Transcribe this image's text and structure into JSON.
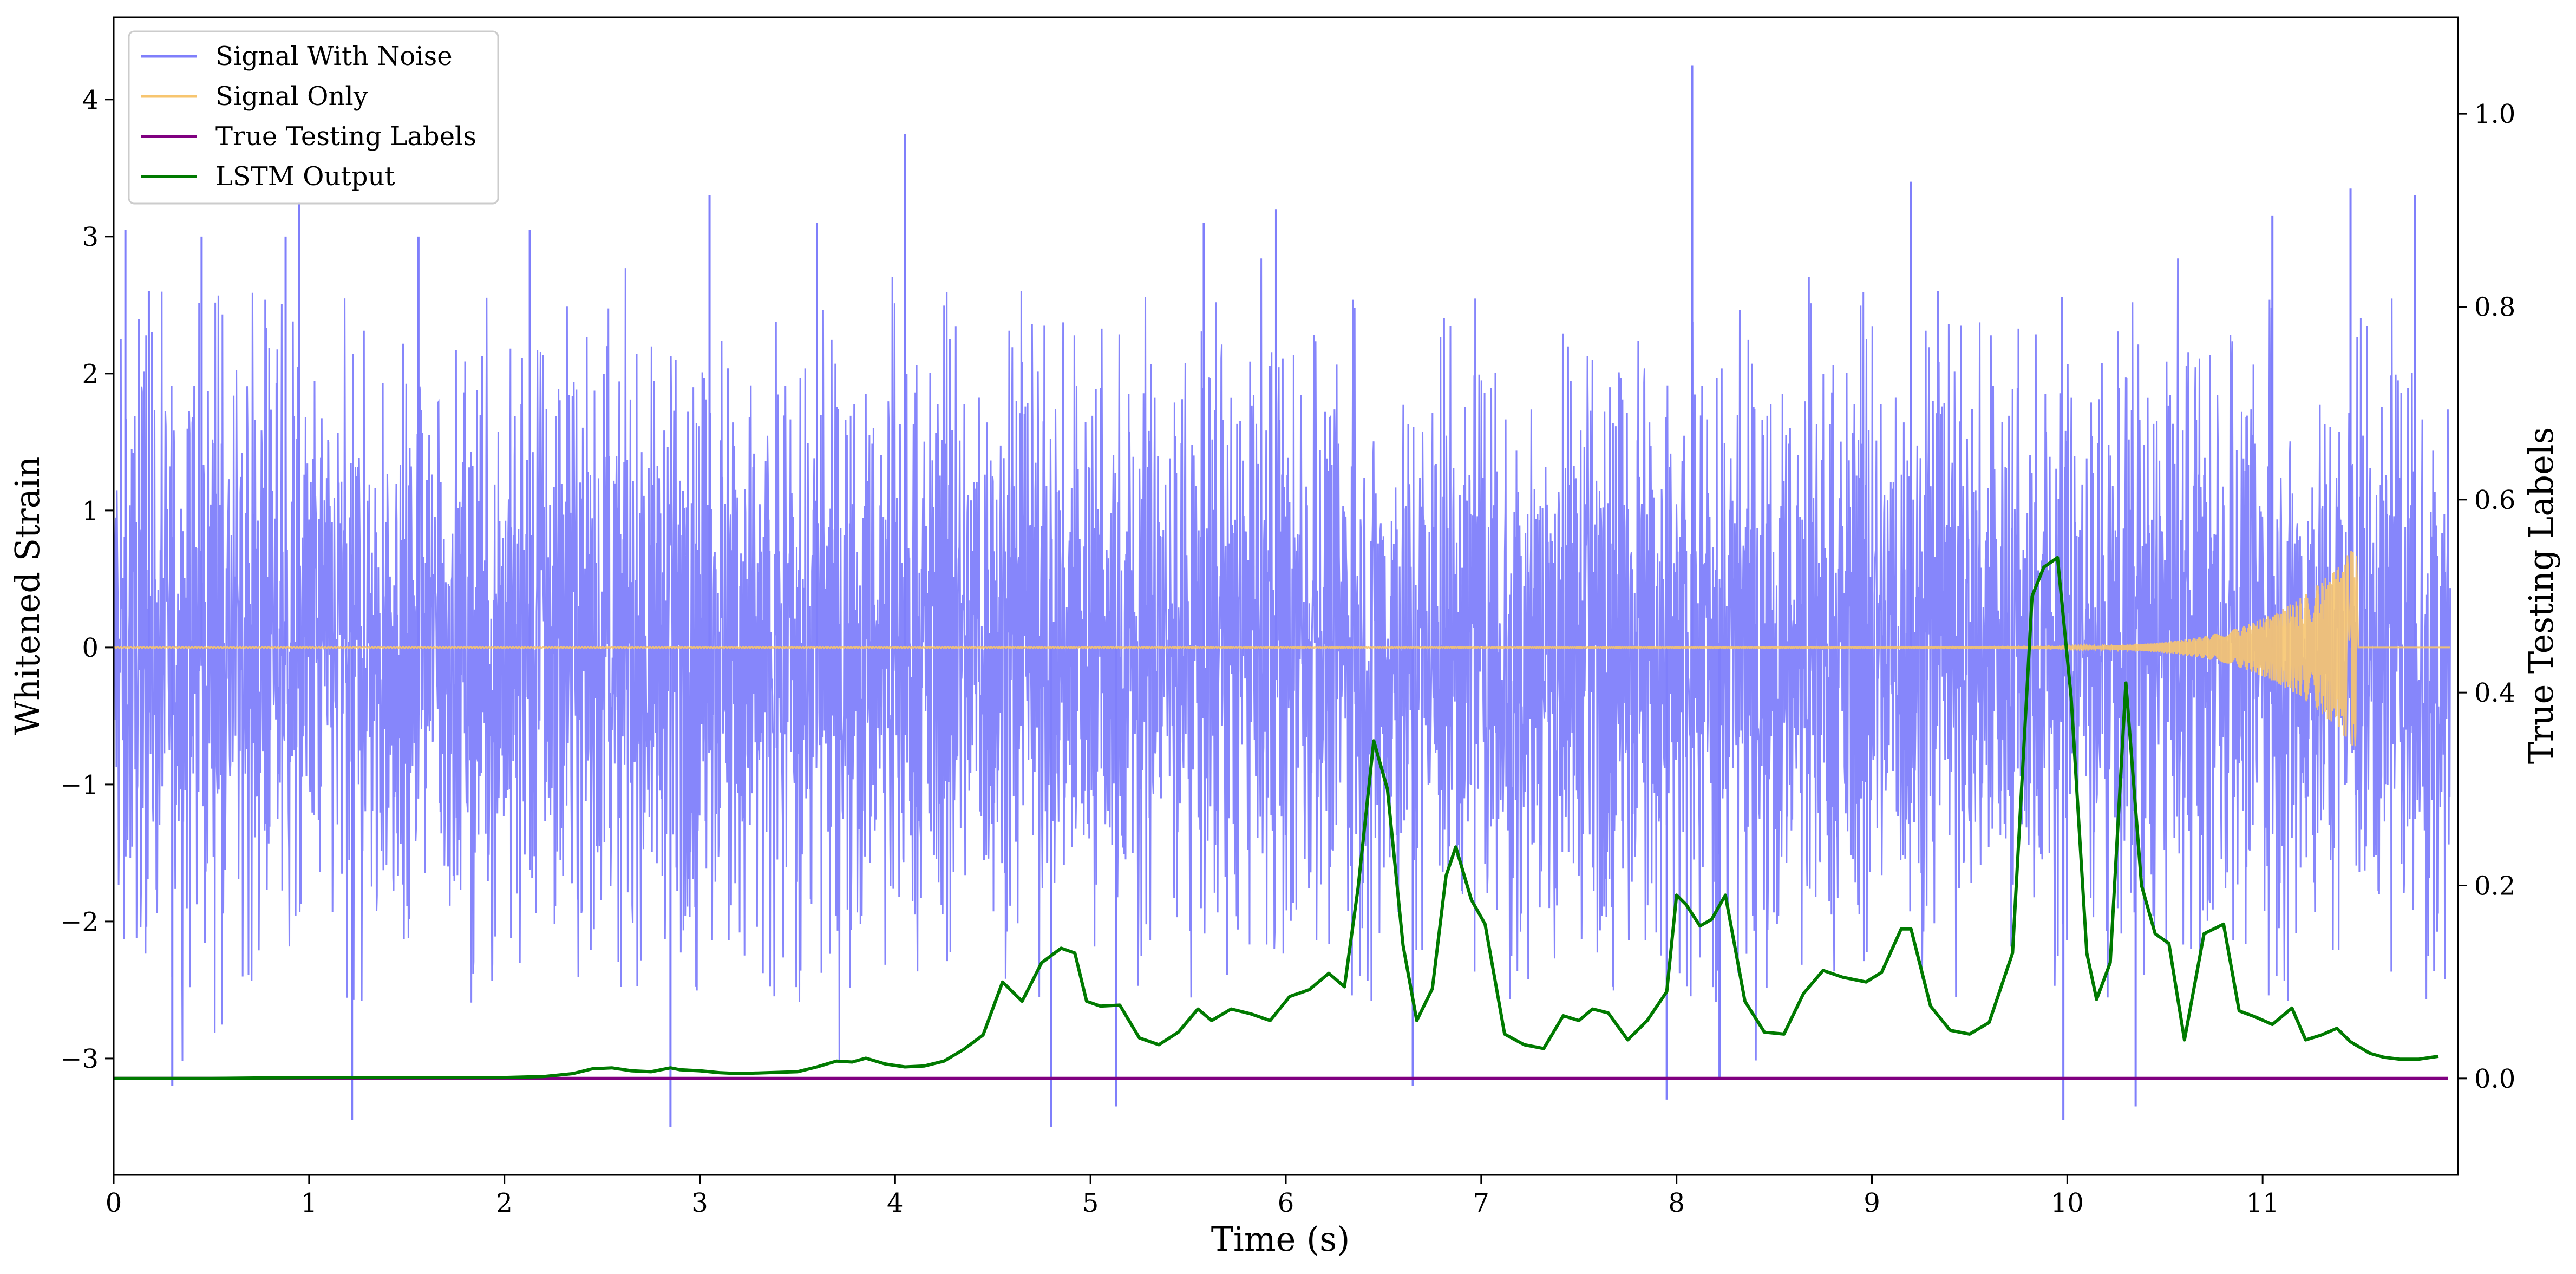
{
  "chart_data": {
    "type": "line",
    "xlabel": "Time (s)",
    "ylabel_left": "Whitened Strain",
    "ylabel_right": "True Testing Labels",
    "xlim": [
      0,
      12
    ],
    "ylim_left": [
      -3.85,
      4.6
    ],
    "ylim_right": [
      -0.1,
      1.1
    ],
    "x_ticks": [
      "0",
      "1",
      "2",
      "3",
      "4",
      "5",
      "6",
      "7",
      "8",
      "9",
      "10",
      "11"
    ],
    "x_tick_values": [
      0,
      1,
      2,
      3,
      4,
      5,
      6,
      7,
      8,
      9,
      10,
      11
    ],
    "y_left_ticks": [
      "−3",
      "−2",
      "−1",
      "0",
      "1",
      "2",
      "3",
      "4"
    ],
    "y_left_tick_values": [
      -3,
      -2,
      -1,
      0,
      1,
      2,
      3,
      4
    ],
    "y_right_ticks": [
      "0.0",
      "0.2",
      "0.4",
      "0.6",
      "0.8",
      "1.0"
    ],
    "y_right_tick_values": [
      0.0,
      0.2,
      0.4,
      0.6,
      0.8,
      1.0
    ],
    "grid": false,
    "legend_position": "top-left",
    "colors": {
      "noise": "#7f7ffb",
      "signal": "#f7c56f",
      "labels": "#800080",
      "lstm": "#007a00"
    },
    "series": [
      {
        "name": "Signal With Noise",
        "axis": "left",
        "description_stats": {
          "typical_range": [
            -2.3,
            2.4
          ],
          "bulk_band": [
            -1.0,
            1.0
          ]
        },
        "spikes": [
          {
            "x": 0.06,
            "y": 3.05
          },
          {
            "x": 0.18,
            "y": 2.6
          },
          {
            "x": 0.3,
            "y": -3.2
          },
          {
            "x": 0.45,
            "y": 3.0
          },
          {
            "x": 0.88,
            "y": 3.0
          },
          {
            "x": 0.95,
            "y": 3.25
          },
          {
            "x": 1.22,
            "y": -3.45
          },
          {
            "x": 1.56,
            "y": 3.0
          },
          {
            "x": 2.13,
            "y": 3.05
          },
          {
            "x": 2.85,
            "y": -3.5
          },
          {
            "x": 3.05,
            "y": 3.3
          },
          {
            "x": 3.6,
            "y": 3.1
          },
          {
            "x": 4.05,
            "y": 3.75
          },
          {
            "x": 4.8,
            "y": -3.5
          },
          {
            "x": 5.13,
            "y": -3.35
          },
          {
            "x": 5.58,
            "y": 3.1
          },
          {
            "x": 5.95,
            "y": 3.2
          },
          {
            "x": 6.65,
            "y": -3.2
          },
          {
            "x": 7.95,
            "y": -3.3
          },
          {
            "x": 8.08,
            "y": 4.25
          },
          {
            "x": 8.22,
            "y": -3.15
          },
          {
            "x": 9.2,
            "y": 3.4
          },
          {
            "x": 9.98,
            "y": -3.45
          },
          {
            "x": 10.35,
            "y": -3.35
          },
          {
            "x": 11.05,
            "y": 3.15
          },
          {
            "x": 11.45,
            "y": 3.35
          },
          {
            "x": 11.78,
            "y": 3.3
          }
        ]
      },
      {
        "name": "Signal Only",
        "axis": "left",
        "chirp": {
          "flat_until": 9.0,
          "merger_x": 11.48,
          "peak_amplitude": 0.75
        }
      },
      {
        "name": "True Testing Labels",
        "axis": "right",
        "x": [
          0,
          11.95
        ],
        "y": [
          0.0,
          0.0
        ]
      },
      {
        "name": "LSTM Output",
        "axis": "right",
        "x": [
          0,
          0.5,
          1,
          1.5,
          2,
          2.2,
          2.35,
          2.45,
          2.55,
          2.65,
          2.75,
          2.85,
          2.9,
          3.0,
          3.1,
          3.2,
          3.35,
          3.5,
          3.6,
          3.7,
          3.78,
          3.85,
          3.95,
          4.05,
          4.15,
          4.25,
          4.35,
          4.45,
          4.55,
          4.65,
          4.75,
          4.85,
          4.92,
          4.98,
          5.05,
          5.15,
          5.25,
          5.35,
          5.45,
          5.55,
          5.62,
          5.72,
          5.82,
          5.92,
          6.02,
          6.12,
          6.22,
          6.3,
          6.37,
          6.45,
          6.52,
          6.6,
          6.67,
          6.75,
          6.82,
          6.87,
          6.95,
          7.02,
          7.12,
          7.22,
          7.32,
          7.42,
          7.5,
          7.57,
          7.65,
          7.75,
          7.85,
          7.95,
          8.0,
          8.05,
          8.12,
          8.18,
          8.25,
          8.35,
          8.45,
          8.55,
          8.65,
          8.75,
          8.85,
          8.97,
          9.05,
          9.15,
          9.2,
          9.3,
          9.4,
          9.5,
          9.6,
          9.72,
          9.82,
          9.88,
          9.95,
          10.02,
          10.1,
          10.15,
          10.22,
          10.3,
          10.38,
          10.45,
          10.52,
          10.6,
          10.7,
          10.8,
          10.88,
          10.96,
          11.05,
          11.15,
          11.22,
          11.3,
          11.38,
          11.45,
          11.55,
          11.62,
          11.7,
          11.8,
          11.9
        ],
        "y": [
          0.0,
          0.0,
          0.001,
          0.001,
          0.001,
          0.002,
          0.005,
          0.01,
          0.011,
          0.008,
          0.007,
          0.011,
          0.009,
          0.008,
          0.006,
          0.005,
          0.006,
          0.007,
          0.012,
          0.018,
          0.017,
          0.021,
          0.015,
          0.012,
          0.013,
          0.018,
          0.03,
          0.045,
          0.1,
          0.08,
          0.12,
          0.135,
          0.13,
          0.08,
          0.075,
          0.076,
          0.042,
          0.035,
          0.048,
          0.072,
          0.06,
          0.072,
          0.067,
          0.06,
          0.085,
          0.092,
          0.109,
          0.095,
          0.198,
          0.35,
          0.3,
          0.138,
          0.06,
          0.093,
          0.21,
          0.24,
          0.185,
          0.16,
          0.046,
          0.035,
          0.031,
          0.065,
          0.06,
          0.072,
          0.068,
          0.04,
          0.06,
          0.09,
          0.19,
          0.18,
          0.158,
          0.165,
          0.19,
          0.08,
          0.048,
          0.046,
          0.088,
          0.112,
          0.105,
          0.1,
          0.11,
          0.155,
          0.155,
          0.075,
          0.05,
          0.046,
          0.058,
          0.13,
          0.5,
          0.53,
          0.54,
          0.395,
          0.13,
          0.082,
          0.12,
          0.41,
          0.2,
          0.15,
          0.14,
          0.04,
          0.15,
          0.16,
          0.07,
          0.064,
          0.056,
          0.073,
          0.04,
          0.045,
          0.052,
          0.038,
          0.026,
          0.022,
          0.02,
          0.02,
          0.023
        ]
      }
    ],
    "legend": [
      "Signal With Noise",
      "Signal Only",
      "True Testing Labels",
      "LSTM Output"
    ]
  }
}
